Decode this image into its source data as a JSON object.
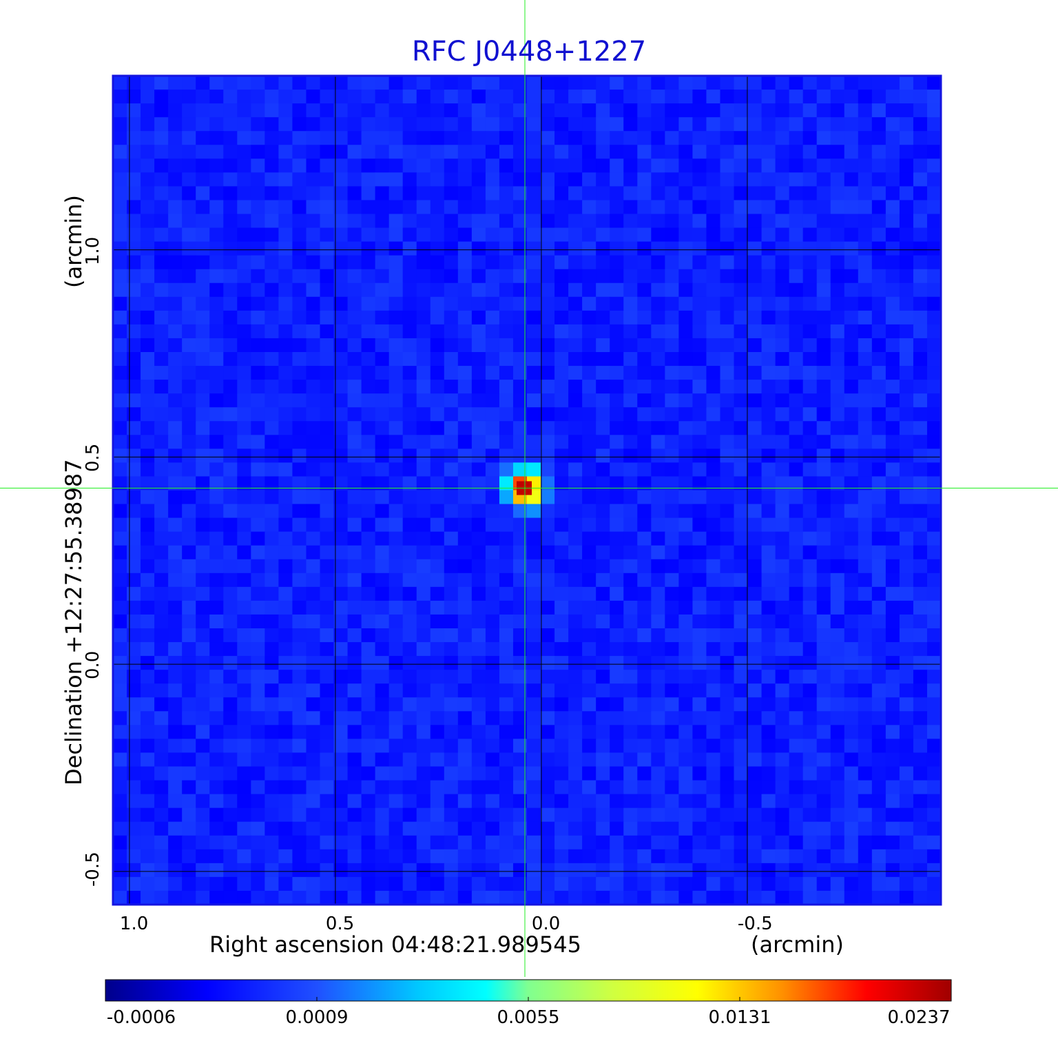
{
  "chart_data": {
    "type": "heatmap",
    "title": "RFC J0448+1227",
    "xlabel": "Right ascension  04:48:21.989545",
    "xunit": "(arcmin)",
    "ylabel": "Declination  +12:27:55.38987",
    "yunit": "(arcmin)",
    "x_ticks": [
      "1.0",
      "0.5",
      "0.0",
      "-0.5"
    ],
    "x_tick_values": [
      1.0,
      0.5,
      0.0,
      -0.5
    ],
    "y_ticks": [
      "1.0",
      "0.5",
      "0.0",
      "-0.5"
    ],
    "y_tick_values": [
      1.0,
      0.5,
      0.0,
      -0.5
    ],
    "xlim": [
      1.04,
      -0.97
    ],
    "ylim": [
      -0.58,
      1.42
    ],
    "grid": true,
    "crosshair": {
      "x": 0.04,
      "y": 0.425
    },
    "source_peak": {
      "x": 0.04,
      "y": 0.425,
      "value": 0.0237
    },
    "background_level": 0.0003,
    "colorbar": {
      "ticks": [
        "-0.0006",
        "0.0009",
        "0.0055",
        "0.0131",
        "0.0237"
      ],
      "colormap": "jet",
      "colors": [
        "#00008b",
        "#0000ff",
        "#00ffff",
        "#ffff00",
        "#ff0000",
        "#8b0000"
      ]
    }
  }
}
